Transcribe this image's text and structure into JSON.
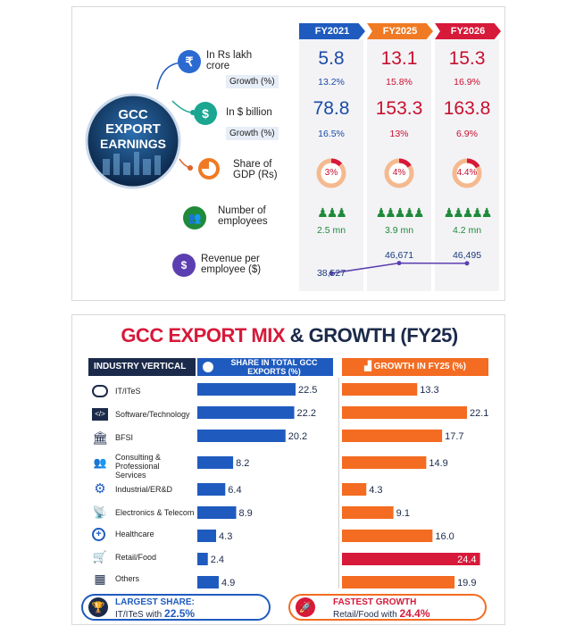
{
  "earnings": {
    "badge_line1": "GCC",
    "badge_line2": "EXPORT",
    "badge_line3": "EARNINGS",
    "years": [
      "FY2021",
      "FY2025",
      "FY2026"
    ],
    "rows": {
      "lakh_crore_label": "In Rs lakh crore",
      "lakh_crore_values": [
        "5.8",
        "13.1",
        "15.3"
      ],
      "lakh_growth_label": "Growth (%)",
      "lakh_growth_values": [
        "13.2%",
        "15.8%",
        "16.9%"
      ],
      "billion_label": "In $ billion",
      "billion_values": [
        "78.8",
        "153.3",
        "163.8"
      ],
      "billion_growth_label": "Growth (%)",
      "billion_growth_values": [
        "16.5%",
        "13%",
        "6.9%"
      ],
      "gdp_label_1": "Share of",
      "gdp_label_2": "GDP (Rs)",
      "gdp_values": [
        "3%",
        "4%",
        "4.4%"
      ],
      "gdp_fractions": [
        0.03,
        0.04,
        0.044
      ],
      "emp_label_1": "Number of",
      "emp_label_2": "employees",
      "emp_values": [
        "2.5 mn",
        "3.9 mn",
        "4.2 mn"
      ],
      "rev_label_1": "Revenue per",
      "rev_label_2": "employee ($)",
      "rev_values": [
        "38,527",
        "46,671",
        "46,495"
      ],
      "rev_numbers": [
        38527,
        46671,
        46495
      ]
    },
    "icons": [
      "rupee-icon",
      "dollar-icon",
      "pie-icon",
      "people-icon",
      "person-dollar-icon"
    ],
    "colors": {
      "fy2021": "#1f5bbf",
      "fy2025": "#f07a24",
      "fy2026": "#d7193a"
    }
  },
  "mix": {
    "title_red": "GCC EXPORT MIX",
    "title_dark": " & GROWTH (FY25)",
    "header_vertical": "INDUSTRY VERTICAL",
    "header_share": "SHARE IN TOTAL GCC EXPORTS (%)",
    "header_growth": "GROWTH IN FY25 (%)",
    "footer_left_1": "LARGEST SHARE:",
    "footer_left_2": "IT/ITeS with ",
    "footer_left_3": "22.5%",
    "footer_right_1": "FASTEST GROWTH",
    "footer_right_2": "Retail/Food with ",
    "footer_right_3": "24.4%"
  },
  "chart_data": {
    "type": "bar",
    "categories": [
      "IT/ITeS",
      "Software/Technology",
      "BFSI",
      "Consulting & Professional Services",
      "Industrial/ER&D",
      "Electronics & Telecom",
      "Healthcare",
      "Retail/Food",
      "Others"
    ],
    "series": [
      {
        "name": "SHARE IN TOTAL GCC EXPORTS (%)",
        "values": [
          22.5,
          22.2,
          20.2,
          8.2,
          6.4,
          8.9,
          4.3,
          2.4,
          4.9
        ]
      },
      {
        "name": "GROWTH IN FY25 (%)",
        "values": [
          13.3,
          22.1,
          17.7,
          14.9,
          4.3,
          9.1,
          16.0,
          24.4,
          19.9
        ]
      }
    ],
    "value_labels_share": [
      "22.5",
      "22.2",
      "20.2",
      "8.2",
      "6.4",
      "8.9",
      "4.3",
      "2.4",
      "4.9"
    ],
    "value_labels_growth": [
      "13.3",
      "22.1",
      "17.7",
      "14.9",
      "4.3",
      "9.1",
      "16.0",
      "24.4",
      "19.9"
    ],
    "share_max": 25,
    "growth_max": 25,
    "colors": {
      "share": "#1f5bbf",
      "growth": "#f36c21",
      "highlight": "#d7193a"
    }
  }
}
